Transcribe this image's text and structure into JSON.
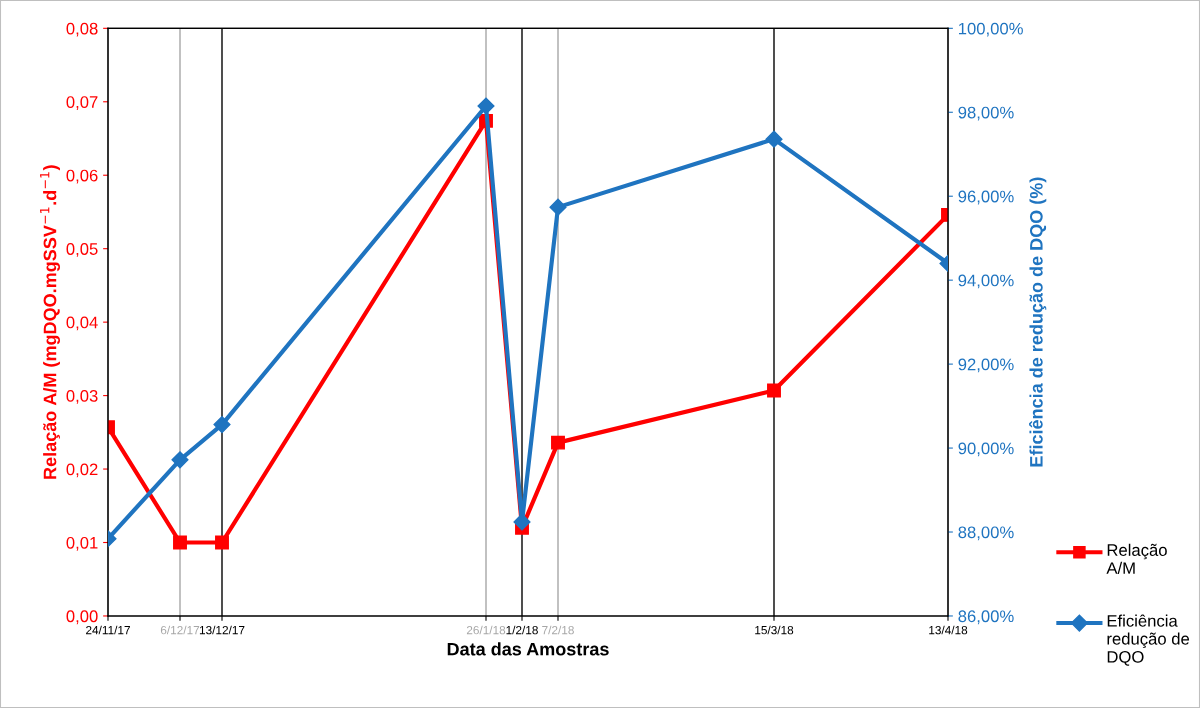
{
  "chart_data": {
    "type": "line",
    "xlabel": "Data das Amostras",
    "ylabel": "Relação A/M (mgDQO.mgSSV$^{−1}$.d$^{−1}$)",
    "y2label": "Eficiência de redução de DQO (%)",
    "x": [
      "2017-11-24",
      "2017-12-06",
      "2017-12-13",
      "2018-01-26",
      "2018-02-01",
      "2018-02-07",
      "2018-03-15",
      "2018-04-13"
    ],
    "series": [
      {
        "name": "Relação A/M",
        "color": "#ff0000",
        "marker": "square",
        "values": [
          0.0257,
          0.01,
          0.01,
          0.0674,
          0.012,
          0.0236,
          0.0307,
          0.0546
        ]
      },
      {
        "name": "Eficiência redução de DQO",
        "color": "#1f74c0",
        "marker": "diamond",
        "axis": "y2",
        "values": [
          87.84,
          89.72,
          90.56,
          98.15,
          88.24,
          95.74,
          97.36,
          94.4
        ]
      }
    ],
    "xlim": [
      "2017-11-24",
      "2018-04-13"
    ],
    "xticks": [
      {
        "value": "2017-11-24",
        "label": "24/11/17"
      },
      {
        "value": "2017-12-06",
        "label": "6/12/17"
      },
      {
        "value": "2017-12-13",
        "label": "13/12/17"
      },
      {
        "value": "2018-01-26",
        "label": "26/1/18"
      },
      {
        "value": "2018-02-01",
        "label": "1/2/18"
      },
      {
        "value": "2018-02-07",
        "label": "7/2/18"
      },
      {
        "value": "2018-03-15",
        "label": "15/3/18"
      },
      {
        "value": "2018-04-13",
        "label": "13/4/18"
      }
    ],
    "ylim": [
      0,
      0.08
    ],
    "yticks": [
      {
        "value": 0,
        "label": "0,00"
      },
      {
        "value": 0.01,
        "label": "0,01"
      },
      {
        "value": 0.02,
        "label": "0,02"
      },
      {
        "value": 0.03,
        "label": "0,03"
      },
      {
        "value": 0.04,
        "label": "0,04"
      },
      {
        "value": 0.05,
        "label": "0,05"
      },
      {
        "value": 0.06,
        "label": "0,06"
      },
      {
        "value": 0.07,
        "label": "0,07"
      },
      {
        "value": 0.08,
        "label": "0,08"
      }
    ],
    "y2lim": [
      86,
      100
    ],
    "y2ticks": [
      {
        "value": 86,
        "label": "86,00%"
      },
      {
        "value": 88,
        "label": "88,00%"
      },
      {
        "value": 90,
        "label": "90,00%"
      },
      {
        "value": 92,
        "label": "92,00%"
      },
      {
        "value": 94,
        "label": "94,00%"
      },
      {
        "value": 96,
        "label": "96,00%"
      },
      {
        "value": 98,
        "label": "98,00%"
      },
      {
        "value": 100,
        "label": "100,00%"
      }
    ],
    "ref_lines": [
      {
        "axis": "x",
        "value": "2017-12-06",
        "color": "#a6a6a6"
      },
      {
        "axis": "x",
        "value": "2017-12-13",
        "color": "#000000"
      },
      {
        "axis": "x",
        "value": "2018-01-26",
        "color": "#a6a6a6"
      },
      {
        "axis": "x",
        "value": "2018-02-01",
        "color": "#000000"
      },
      {
        "axis": "x",
        "value": "2018-02-07",
        "color": "#a6a6a6"
      },
      {
        "axis": "x",
        "value": "2018-03-15",
        "color": "#000000"
      }
    ],
    "legend": "right",
    "grid": false,
    "line_style": "solid"
  }
}
